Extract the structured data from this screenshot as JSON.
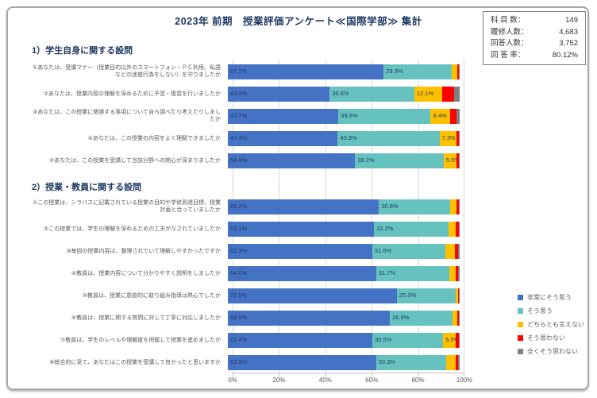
{
  "page": {
    "title": "2023年 前期　授業評価アンケート≪国際学部≫ 集計"
  },
  "stats": {
    "rows": [
      {
        "label": "科 目 数：",
        "value": "149"
      },
      {
        "label": "履修人数：",
        "value": "4,683"
      },
      {
        "label": "回答人数：",
        "value": "3,752"
      },
      {
        "label": "回 答 率：",
        "value": "80.12%"
      }
    ]
  },
  "chart_data": {
    "type": "bar",
    "stacked": true,
    "orientation": "horizontal",
    "title": "2023年 前期　授業評価アンケート≪国際学部≫ 集計",
    "xlim": [
      0,
      100
    ],
    "x_ticks": [
      "0%",
      "20%",
      "40%",
      "60%",
      "80%",
      "100%"
    ],
    "grid": true,
    "legend_position": "right",
    "label_min_pct": 5.0,
    "legend": [
      {
        "key": "strongly-agree",
        "label": "非常にそう思う",
        "color": "#4472C4"
      },
      {
        "key": "agree",
        "label": "そう思う",
        "color": "#66C2BF"
      },
      {
        "key": "neutral",
        "label": "どちらとも言えない",
        "color": "#FFC000"
      },
      {
        "key": "disagree",
        "label": "そう思わない",
        "color": "#FF0000"
      },
      {
        "key": "strongly-disagree",
        "label": "全くそう思わない",
        "color": "#7F7F7F"
      }
    ],
    "sections": [
      {
        "heading": "1）学生自身に関する設問",
        "rows": [
          {
            "question": "①あなたは、受講マナー（授業目的以外のスマートフォン・ＰＣ利用、私語などの迷惑行為をしない）を守りましたか",
            "values": [
              67.2,
              29.3,
              2.4,
              0.8,
              0.3
            ]
          },
          {
            "question": "②あなたは、授業内容の理解を深めるために予習・復習を行いましたか",
            "values": [
              43.9,
              36.6,
              12.1,
              4.9,
              2.5
            ]
          },
          {
            "question": "③あなたは、この授業に関連する事項について自ら調べたり考えたりしましたか",
            "values": [
              47.7,
              39.8,
              8.4,
              2.8,
              1.3
            ]
          },
          {
            "question": "④あなたは、この授業の内容をよく理解できましたか",
            "values": [
              47.4,
              43.9,
              7.3,
              1.0,
              0.4
            ]
          },
          {
            "question": "⑤あなたは、この授業を受講して当該分野への関心が深まりましたか",
            "values": [
              54.9,
              38.2,
              5.5,
              1.0,
              0.4
            ]
          }
        ]
      },
      {
        "heading": "2）授業・教員に関する設問",
        "rows": [
          {
            "question": "①この授業は、シラバスに記載されている授業の目的や学修到達目標、授業計画と合っていましたか",
            "values": [
              65.2,
              30.8,
              2.5,
              1.0,
              0.5
            ]
          },
          {
            "question": "②この授業では、学生の理解を深めるための工夫がなされていましたか",
            "values": [
              63.1,
              32.2,
              3.0,
              1.2,
              0.5
            ]
          },
          {
            "question": "③毎回の授業内容は、整理されていて理解しやすかったですか",
            "values": [
              62.3,
              31.6,
              4.0,
              1.4,
              0.7
            ]
          },
          {
            "question": "④教員は、授業内容について分かりやすく説明をしましたか",
            "values": [
              64.0,
              31.7,
              2.6,
              1.1,
              0.6
            ]
          },
          {
            "question": "⑤教員は、授業に意欲的に取り組み指導は熱心でしたか",
            "values": [
              72.9,
              25.3,
              1.2,
              0.4,
              0.2
            ]
          },
          {
            "question": "⑥教員は、授業に関する質問に対して丁寧に対応しましたか",
            "values": [
              69.9,
              26.9,
              2.2,
              0.6,
              0.4
            ]
          },
          {
            "question": "⑦教員は、学生のレベルや理解度を把握して授業を進めましたか",
            "values": [
              62.4,
              30.5,
              5.5,
              1.2,
              0.4
            ]
          },
          {
            "question": "⑧総合的に見て、あなたはこの授業を受講して良かったと思いますか",
            "values": [
              63.9,
              30.3,
              4.0,
              1.0,
              0.8
            ]
          }
        ]
      }
    ]
  }
}
